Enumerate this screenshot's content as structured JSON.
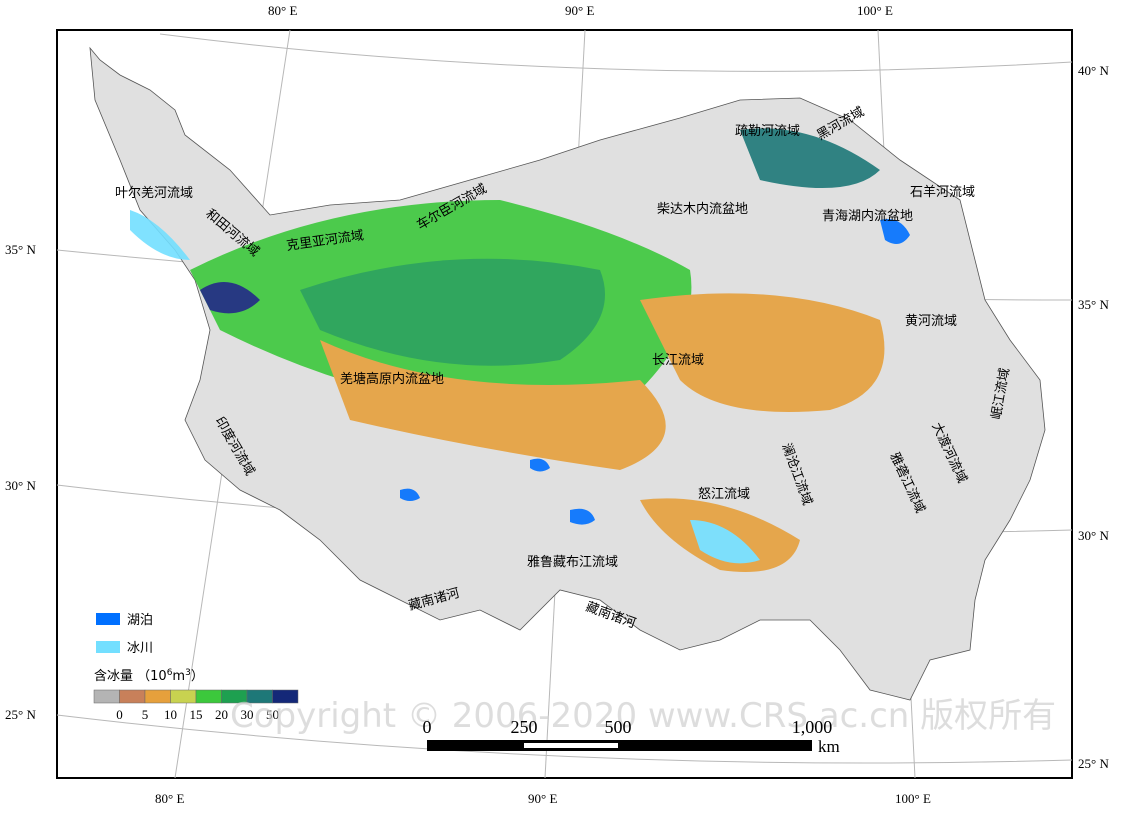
{
  "map": {
    "graticule": {
      "top": [
        "80° E",
        "90° E",
        "100° E"
      ],
      "bottom": [
        "80° E",
        "90° E",
        "100° E"
      ],
      "left": [
        "35° N",
        "30° N",
        "25° N"
      ],
      "right": [
        "40° N",
        "35° N",
        "30° N",
        "25° N"
      ]
    },
    "regions": [
      "叶尔羌河流域",
      "和田河流域",
      "克里亚河流域",
      "车尔臣河流域",
      "柴达木内流盆地",
      "疏勒河流域",
      "黑河流域",
      "石羊河流域",
      "青海湖内流盆地",
      "黄河流域",
      "羌塘高原内流盆地",
      "长江流域",
      "印度河流域",
      "澜沧江流域",
      "雅砻江流域",
      "大渡河流域",
      "岷江流域",
      "怒江流域",
      "雅鲁藏布江流域",
      "藏南诸河",
      "藏南诸河"
    ],
    "legend": {
      "lake": "湖泊",
      "glacier": "冰川",
      "lake_color": "#0070ff",
      "glacier_color": "#73dfff",
      "title": [
        "含冰量 （10",
        "6",
        "m",
        "3",
        "）"
      ],
      "colors": [
        "#b4b4b4",
        "#c8805a",
        "#e6a03c",
        "#c8d250",
        "#3cc83c",
        "#1ea050",
        "#1e7878",
        "#142878"
      ],
      "ticks": [
        "0",
        "5",
        "10",
        "15",
        "20",
        "30",
        "50"
      ]
    },
    "scale": {
      "ticks": [
        "0",
        "250",
        "500",
        "1,000"
      ],
      "unit": "km"
    },
    "watermark": "Copyright © 2006-2020 www.CRS.ac.cn 版权所有"
  }
}
